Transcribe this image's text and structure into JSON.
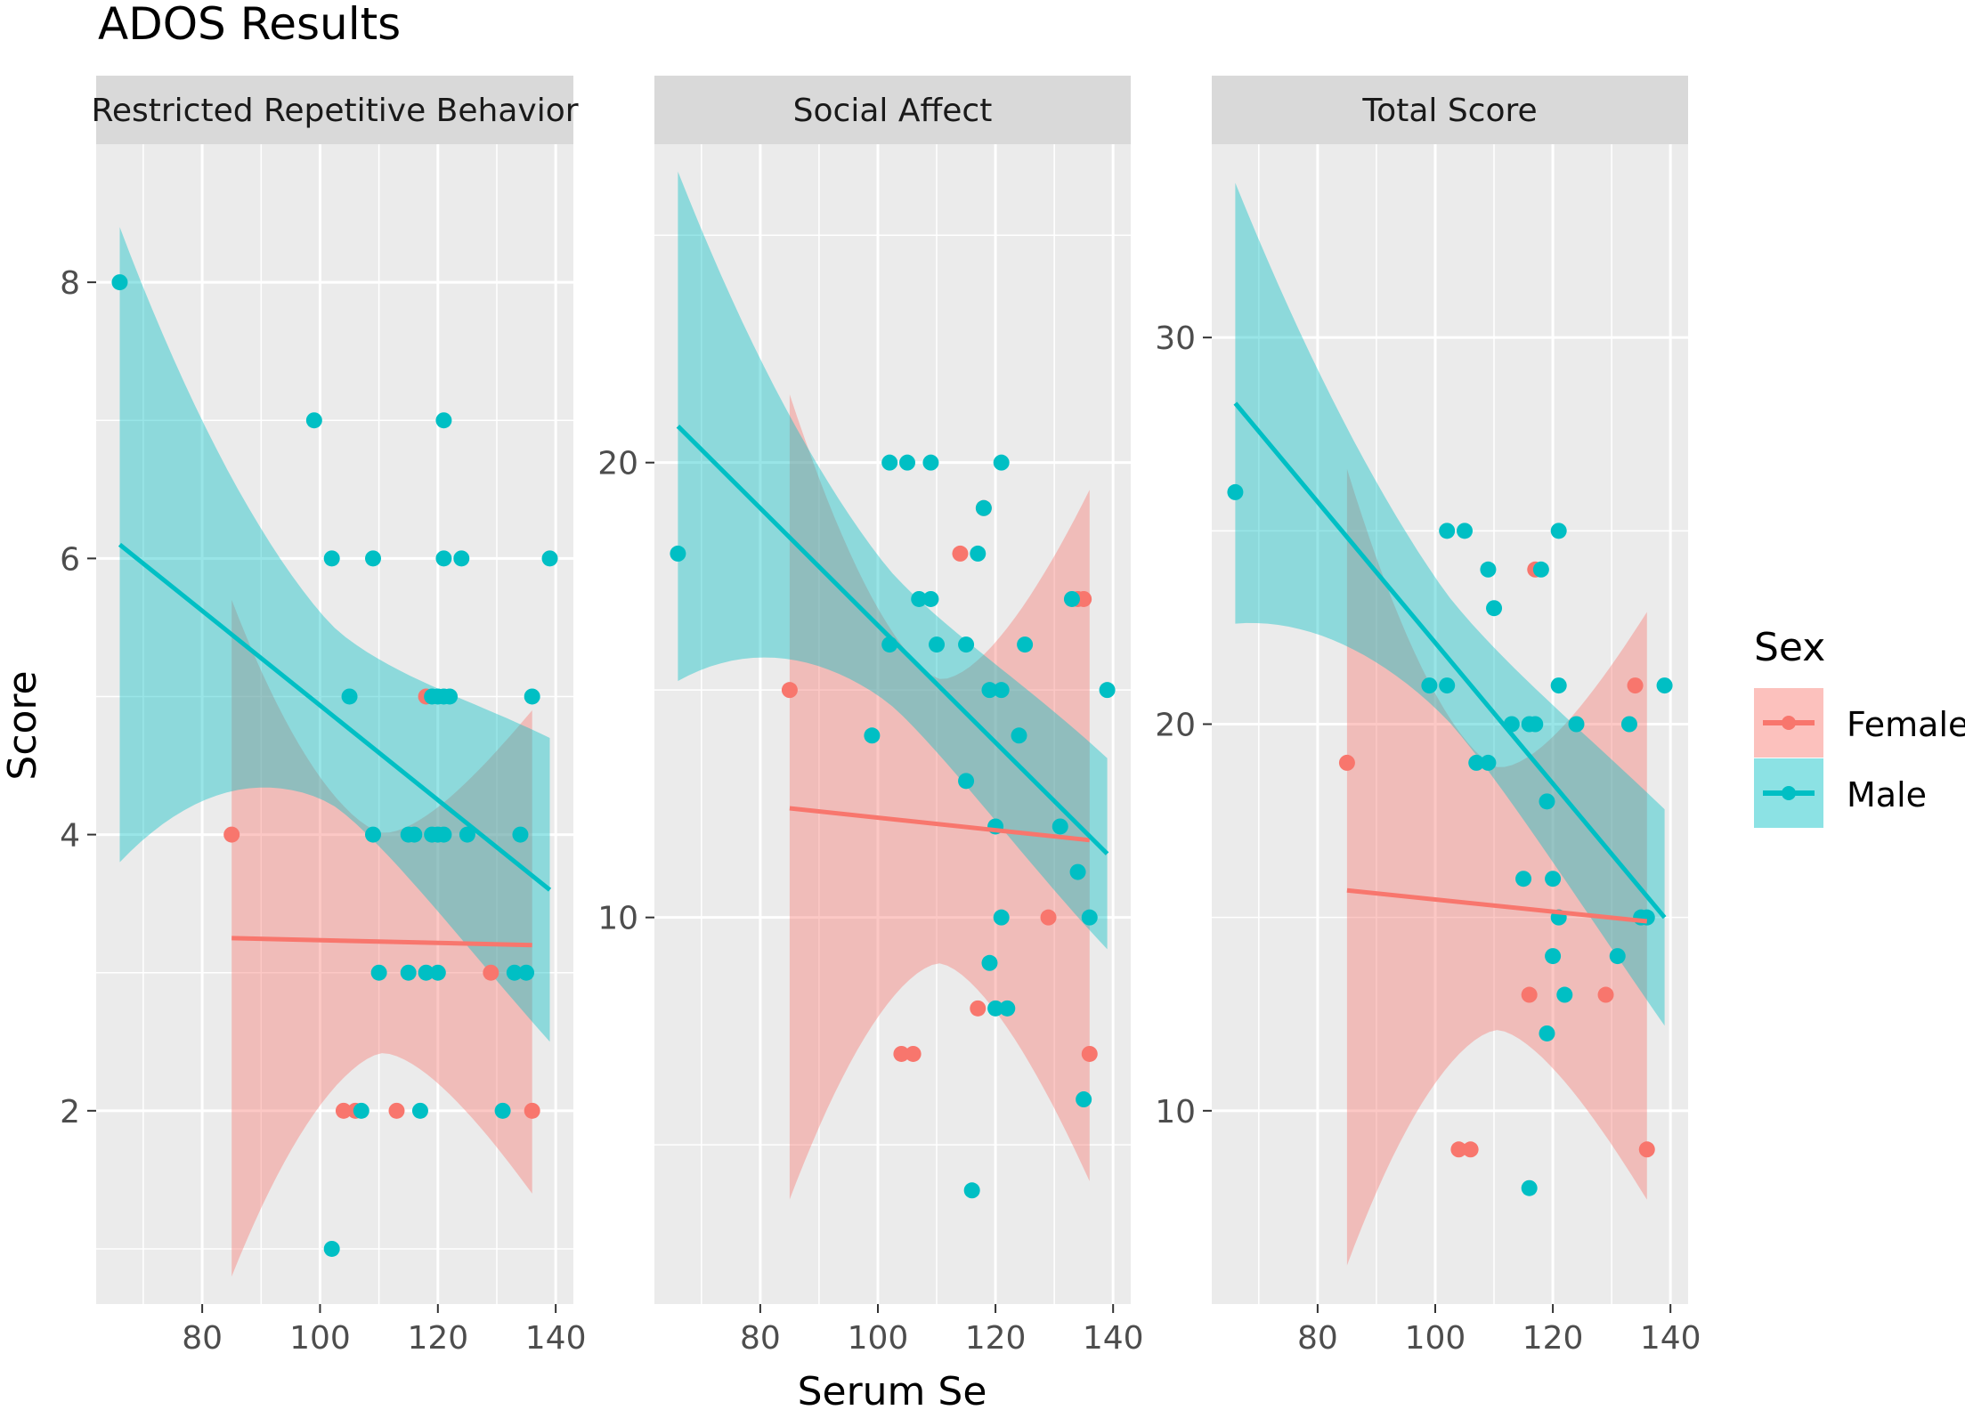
{
  "chart_data": {
    "type": "scatter",
    "title": "ADOS Results",
    "xlabel": "Serum Se",
    "ylabel": "Score",
    "xlim": [
      62,
      143
    ],
    "xticks": [
      80,
      100,
      120,
      140
    ],
    "legend": {
      "title": "Sex",
      "placement": "right",
      "entries": [
        {
          "name": "Female",
          "color": "#F8766D"
        },
        {
          "name": "Male",
          "color": "#00BFC4"
        }
      ]
    },
    "colors": {
      "female": "#F8766D",
      "male": "#00BFC4",
      "panel_bg": "#EBEBEB",
      "strip_bg": "#D9D9D9",
      "grid": "#FFFFFF"
    },
    "facets": [
      {
        "name": "Restricted Repetitive Behavior",
        "ylim": [
          0.6,
          9.0
        ],
        "yticks": [
          2,
          4,
          6,
          8
        ],
        "female_points": [
          [
            85,
            4
          ],
          [
            104,
            2
          ],
          [
            106,
            2
          ],
          [
            113,
            2
          ],
          [
            118,
            5
          ],
          [
            129,
            3
          ],
          [
            136,
            2
          ]
        ],
        "male_points": [
          [
            66,
            8
          ],
          [
            99,
            7
          ],
          [
            102,
            1
          ],
          [
            102,
            6
          ],
          [
            105,
            5
          ],
          [
            107,
            2
          ],
          [
            109,
            4
          ],
          [
            109,
            6
          ],
          [
            110,
            3
          ],
          [
            115,
            3
          ],
          [
            115,
            4
          ],
          [
            116,
            4
          ],
          [
            117,
            2
          ],
          [
            118,
            3
          ],
          [
            119,
            5
          ],
          [
            119,
            4
          ],
          [
            120,
            3
          ],
          [
            120,
            4
          ],
          [
            120,
            5
          ],
          [
            121,
            4
          ],
          [
            121,
            5
          ],
          [
            121,
            6
          ],
          [
            121,
            7
          ],
          [
            122,
            5
          ],
          [
            124,
            6
          ],
          [
            125,
            4
          ],
          [
            131,
            2
          ],
          [
            133,
            3
          ],
          [
            134,
            4
          ],
          [
            135,
            3
          ],
          [
            136,
            5
          ],
          [
            139,
            6
          ]
        ],
        "male_fit": {
          "x": [
            66,
            139
          ],
          "y": [
            6.1,
            3.6
          ],
          "ci_low": [
            3.8,
            2.5
          ],
          "ci_high": [
            8.4,
            4.7
          ],
          "ci_mid": [
            3.98,
            4.25,
            4.4,
            4.05,
            2.5
          ]
        },
        "female_fit": {
          "x": [
            85,
            136
          ],
          "y": [
            3.25,
            3.2
          ],
          "ci_low": [
            0.8,
            1.4
          ],
          "ci_high": [
            5.7,
            4.9
          ]
        }
      },
      {
        "name": "Social Affect",
        "ylim": [
          1.5,
          27.0
        ],
        "yticks": [
          10,
          20
        ],
        "female_points": [
          [
            85,
            15
          ],
          [
            104,
            7
          ],
          [
            106,
            7
          ],
          [
            114,
            18
          ],
          [
            117,
            8
          ],
          [
            118,
            19
          ],
          [
            129,
            10
          ],
          [
            134,
            17
          ],
          [
            135,
            17
          ],
          [
            136,
            7
          ]
        ],
        "male_points": [
          [
            66,
            18
          ],
          [
            99,
            14
          ],
          [
            102,
            16
          ],
          [
            102,
            20
          ],
          [
            105,
            20
          ],
          [
            107,
            17
          ],
          [
            109,
            20
          ],
          [
            109,
            17
          ],
          [
            110,
            16
          ],
          [
            115,
            13
          ],
          [
            115,
            16
          ],
          [
            116,
            4
          ],
          [
            117,
            18
          ],
          [
            118,
            19
          ],
          [
            119,
            15
          ],
          [
            119,
            9
          ],
          [
            120,
            12
          ],
          [
            120,
            8
          ],
          [
            121,
            10
          ],
          [
            121,
            15
          ],
          [
            121,
            20
          ],
          [
            122,
            8
          ],
          [
            124,
            14
          ],
          [
            125,
            16
          ],
          [
            131,
            12
          ],
          [
            133,
            17
          ],
          [
            134,
            11
          ],
          [
            135,
            6
          ],
          [
            136,
            10
          ],
          [
            139,
            15
          ]
        ],
        "male_fit": {
          "x": [
            66,
            139
          ],
          "y": [
            20.8,
            11.4
          ],
          "ci_low": [
            15.2,
            9.3
          ],
          "ci_high": [
            26.4,
            13.5
          ]
        },
        "female_fit": {
          "x": [
            85,
            136
          ],
          "y": [
            12.4,
            11.7
          ],
          "ci_low": [
            3.8,
            4.2
          ],
          "ci_high": [
            21.5,
            19.4
          ]
        }
      },
      {
        "name": "Total Score",
        "ylim": [
          5.0,
          35.0
        ],
        "yticks": [
          10,
          20,
          30
        ],
        "female_points": [
          [
            85,
            19
          ],
          [
            104,
            9
          ],
          [
            106,
            9
          ],
          [
            116,
            13
          ],
          [
            117,
            24
          ],
          [
            129,
            13
          ],
          [
            134,
            21
          ],
          [
            136,
            9
          ]
        ],
        "male_points": [
          [
            66,
            26
          ],
          [
            99,
            21
          ],
          [
            102,
            21
          ],
          [
            102,
            25
          ],
          [
            105,
            25
          ],
          [
            107,
            19
          ],
          [
            109,
            19
          ],
          [
            109,
            24
          ],
          [
            110,
            23
          ],
          [
            113,
            20
          ],
          [
            115,
            16
          ],
          [
            116,
            20
          ],
          [
            116,
            8
          ],
          [
            117,
            20
          ],
          [
            118,
            24
          ],
          [
            119,
            18
          ],
          [
            119,
            12
          ],
          [
            120,
            16
          ],
          [
            120,
            14
          ],
          [
            121,
            15
          ],
          [
            121,
            21
          ],
          [
            121,
            25
          ],
          [
            122,
            13
          ],
          [
            124,
            20
          ],
          [
            131,
            14
          ],
          [
            133,
            20
          ],
          [
            135,
            15
          ],
          [
            136,
            15
          ],
          [
            139,
            21
          ]
        ],
        "male_fit": {
          "x": [
            66,
            139
          ],
          "y": [
            28.3,
            15.0
          ],
          "ci_low": [
            22.6,
            12.2
          ],
          "ci_high": [
            34.0,
            17.8
          ]
        },
        "female_fit": {
          "x": [
            85,
            136
          ],
          "y": [
            15.7,
            14.9
          ],
          "ci_low": [
            6.0,
            7.7
          ],
          "ci_high": [
            26.6,
            22.9
          ]
        }
      }
    ]
  }
}
